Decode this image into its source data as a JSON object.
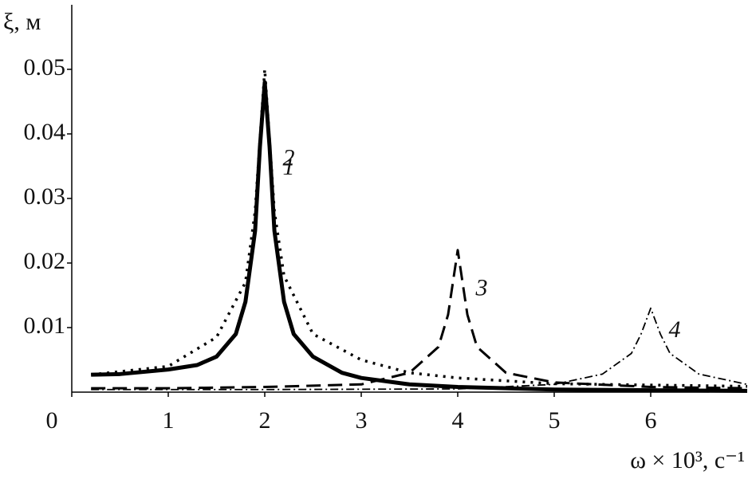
{
  "chart_data": {
    "type": "line",
    "y_label": "ξ, м",
    "x_label": "ω × 10³, с⁻¹",
    "xlim": [
      0,
      7
    ],
    "ylim": [
      0,
      0.06
    ],
    "xticks": [
      0,
      1,
      2,
      3,
      4,
      5,
      6
    ],
    "yticks": [
      0.01,
      0.02,
      0.03,
      0.04,
      0.05
    ],
    "series": [
      {
        "name": "1",
        "color": "#000000",
        "style": "solid",
        "x": [
          0.2,
          0.5,
          1.0,
          1.3,
          1.5,
          1.7,
          1.8,
          1.9,
          1.95,
          2.0,
          2.05,
          2.1,
          2.2,
          2.3,
          2.5,
          2.8,
          3.0,
          3.5,
          4.0,
          5.0,
          6.0,
          7.0
        ],
        "values": [
          0.0027,
          0.0028,
          0.0035,
          0.0042,
          0.0055,
          0.009,
          0.014,
          0.025,
          0.038,
          0.048,
          0.038,
          0.025,
          0.014,
          0.009,
          0.0055,
          0.003,
          0.0022,
          0.0012,
          0.0008,
          0.0004,
          0.0003,
          0.0002
        ]
      },
      {
        "name": "2",
        "color": "#000000",
        "style": "dotted",
        "x": [
          0.2,
          1.0,
          1.5,
          1.8,
          1.9,
          2.0,
          2.1,
          2.2,
          2.5,
          3.0,
          3.5,
          4.0,
          5.0,
          6.0,
          7.0
        ],
        "values": [
          0.0027,
          0.004,
          0.0085,
          0.017,
          0.028,
          0.05,
          0.028,
          0.018,
          0.009,
          0.005,
          0.003,
          0.0022,
          0.0013,
          0.0011,
          0.0009
        ]
      },
      {
        "name": "3",
        "color": "#000000",
        "style": "dashed",
        "x": [
          0.2,
          1.0,
          2.0,
          3.0,
          3.5,
          3.8,
          3.9,
          4.0,
          4.1,
          4.2,
          4.5,
          5.0,
          6.0,
          7.0
        ],
        "values": [
          0.0006,
          0.0006,
          0.0008,
          0.0012,
          0.003,
          0.007,
          0.012,
          0.022,
          0.012,
          0.007,
          0.003,
          0.0015,
          0.0008,
          0.0006
        ]
      },
      {
        "name": "4",
        "color": "#000000",
        "style": "dashdot",
        "x": [
          0.2,
          2.0,
          4.0,
          5.0,
          5.5,
          5.8,
          5.9,
          6.0,
          6.1,
          6.2,
          6.5,
          7.0
        ],
        "values": [
          0.0004,
          0.0004,
          0.0005,
          0.0012,
          0.0028,
          0.006,
          0.009,
          0.013,
          0.009,
          0.006,
          0.0028,
          0.0012
        ]
      }
    ]
  }
}
